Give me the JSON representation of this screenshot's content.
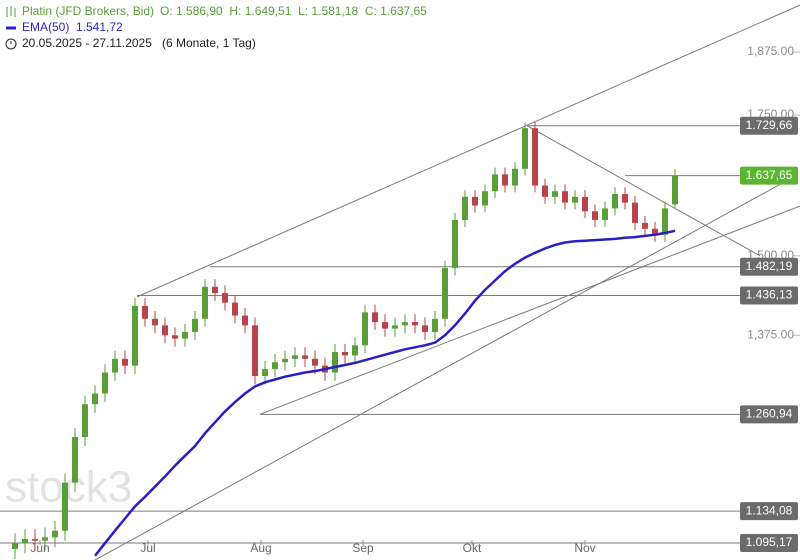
{
  "chart_data": {
    "type": "candlestick",
    "header": {
      "title": "Platin (JFD Brokers, Bid)",
      "quote": "O: 1.586,90  H: 1.649,51  L: 1.581,18  C: 1.637,65",
      "indicator": "EMA(50)",
      "indicator_value": "1.541,72",
      "range": "20.05.2025 - 27.11.2025",
      "period": "(6 Monate, 1 Tag)"
    },
    "watermark": "stock3",
    "log_scale": true,
    "ylim": [
      1075,
      1985
    ],
    "xlim": [
      -1.5,
      78.5
    ],
    "yticks": [
      {
        "value": 1875,
        "label": "1,875.00"
      },
      {
        "value": 1750,
        "label": "1,750.00"
      },
      {
        "value": 1500,
        "label": "1,500.00"
      },
      {
        "value": 1375,
        "label": "1,375.00"
      }
    ],
    "xticks": [
      {
        "value": 2.5,
        "label": "Jun"
      },
      {
        "value": 13.3,
        "label": "Jul"
      },
      {
        "value": 24.6,
        "label": "Aug"
      },
      {
        "value": 34.8,
        "label": "Sep"
      },
      {
        "value": 45.7,
        "label": "Okt"
      },
      {
        "value": 57,
        "label": "Nov"
      }
    ],
    "up_color": "#5a9e3a",
    "down_color": "#b8434a",
    "candles": {
      "open": [
        1088,
        1095,
        1100,
        1098,
        1102,
        1110,
        1170,
        1230,
        1275,
        1290,
        1320,
        1340,
        1330,
        1420,
        1400,
        1390,
        1375,
        1370,
        1380,
        1400,
        1450,
        1440,
        1425,
        1405,
        1390,
        1315,
        1325,
        1335,
        1340,
        1345,
        1340,
        1330,
        1320,
        1350,
        1345,
        1360,
        1410,
        1395,
        1385,
        1390,
        1395,
        1390,
        1380,
        1400,
        1480,
        1560,
        1600,
        1585,
        1610,
        1640,
        1620,
        1650,
        1725,
        1620,
        1600,
        1610,
        1590,
        1600,
        1575,
        1560,
        1580,
        1605,
        1590,
        1555,
        1545,
        1535,
        1586.9
      ],
      "high": [
        1107,
        1112,
        1112,
        1114,
        1122,
        1182,
        1242,
        1287,
        1302,
        1332,
        1352,
        1352,
        1432,
        1432,
        1412,
        1402,
        1387,
        1392,
        1412,
        1462,
        1462,
        1452,
        1437,
        1417,
        1402,
        1337,
        1347,
        1352,
        1357,
        1357,
        1352,
        1342,
        1362,
        1362,
        1372,
        1422,
        1422,
        1407,
        1402,
        1407,
        1407,
        1402,
        1412,
        1492,
        1572,
        1612,
        1612,
        1622,
        1652,
        1652,
        1662,
        1735,
        1737,
        1632,
        1622,
        1622,
        1612,
        1612,
        1587,
        1592,
        1617,
        1617,
        1602,
        1567,
        1557,
        1592,
        1649.51
      ],
      "low": [
        1076,
        1083,
        1086,
        1086,
        1090,
        1098,
        1158,
        1218,
        1263,
        1278,
        1308,
        1318,
        1318,
        1388,
        1378,
        1363,
        1358,
        1358,
        1368,
        1388,
        1428,
        1413,
        1393,
        1378,
        1303,
        1303,
        1313,
        1323,
        1328,
        1328,
        1318,
        1308,
        1308,
        1333,
        1333,
        1348,
        1383,
        1373,
        1373,
        1378,
        1378,
        1368,
        1368,
        1388,
        1468,
        1548,
        1573,
        1573,
        1598,
        1608,
        1608,
        1638,
        1608,
        1588,
        1588,
        1578,
        1578,
        1563,
        1548,
        1548,
        1568,
        1578,
        1543,
        1533,
        1523,
        1523,
        1581.18
      ],
      "close": [
        1095,
        1100,
        1098,
        1102,
        1110,
        1170,
        1230,
        1275,
        1290,
        1320,
        1340,
        1330,
        1420,
        1400,
        1390,
        1375,
        1370,
        1380,
        1400,
        1450,
        1440,
        1425,
        1405,
        1390,
        1315,
        1325,
        1335,
        1340,
        1345,
        1340,
        1330,
        1320,
        1350,
        1345,
        1360,
        1410,
        1395,
        1385,
        1390,
        1395,
        1390,
        1380,
        1400,
        1480,
        1560,
        1600,
        1585,
        1610,
        1640,
        1620,
        1650,
        1725,
        1620,
        1600,
        1610,
        1590,
        1600,
        1575,
        1560,
        1580,
        1605,
        1590,
        1555,
        1545,
        1535,
        1580,
        1637.65
      ]
    },
    "ema": {
      "color": "#2a1fc4",
      "values": [
        null,
        null,
        null,
        null,
        null,
        null,
        null,
        null,
        1080,
        1095,
        1110,
        1125,
        1140,
        1152,
        1165,
        1178,
        1192,
        1205,
        1218,
        1235,
        1250,
        1265,
        1278,
        1290,
        1300,
        1306,
        1310,
        1314,
        1317,
        1320,
        1322,
        1325,
        1328,
        1331,
        1334,
        1338,
        1342,
        1346,
        1350,
        1354,
        1357,
        1360,
        1364,
        1375,
        1390,
        1408,
        1428,
        1445,
        1460,
        1475,
        1487,
        1497,
        1505,
        1512,
        1518,
        1522,
        1524,
        1525,
        1526,
        1527,
        1528,
        1530,
        1531,
        1533,
        1535,
        1538,
        1541.72
      ]
    },
    "trendlines": [
      [
        12.2,
        1434,
        78.5,
        1974
      ],
      [
        24.5,
        1261,
        78.5,
        1584
      ],
      [
        8,
        1075,
        76.5,
        1622
      ],
      [
        51.2,
        1729.66,
        74.5,
        1500
      ]
    ],
    "levels": [
      {
        "value": 1729.66,
        "label": "1.729,66",
        "start": 51.2,
        "color": "#6b6b6b"
      },
      {
        "value": 1637.65,
        "label": "1.637,65",
        "start": 61,
        "color": "#5cb531"
      },
      {
        "value": 1482.19,
        "label": "1.482,19",
        "start": 19.5,
        "color": "#6b6b6b"
      },
      {
        "value": 1436.13,
        "label": "1.436,13",
        "start": 12.2,
        "color": "#6b6b6b"
      },
      {
        "value": 1260.94,
        "label": "1.260,94",
        "start": 24.5,
        "color": "#6b6b6b"
      },
      {
        "value": 1134.08,
        "label": "1.134,08",
        "start": -1.5,
        "color": "#6b6b6b"
      },
      {
        "value": 1095.17,
        "label": "1.095,17",
        "start": -1.5,
        "color": "#6b6b6b"
      }
    ]
  }
}
